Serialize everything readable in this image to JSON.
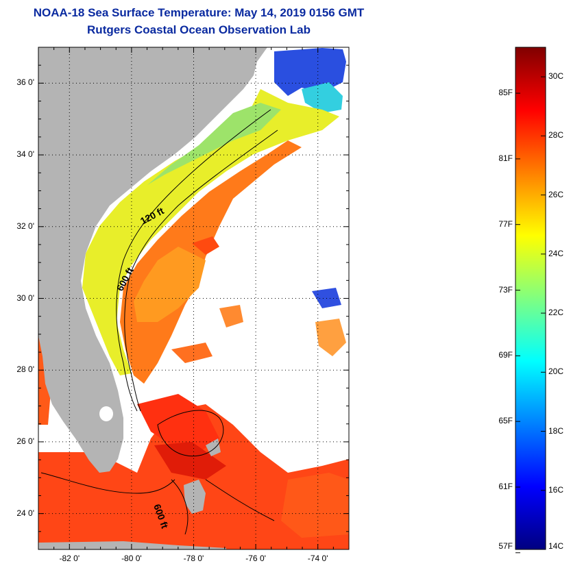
{
  "title": {
    "line1": "NOAA-18 Sea Surface Temperature:  May 14, 2019 0156 GMT",
    "line2": "Rutgers Coastal Ocean Observation Lab"
  },
  "map": {
    "lat_labels": [
      "36 0'",
      "34 0'",
      "32 0'",
      "30 0'",
      "28 0'",
      "26 0'",
      "24 0'"
    ],
    "lat_values": [
      36,
      34,
      32,
      30,
      28,
      26,
      24
    ],
    "lon_labels": [
      "-82 0'",
      "-80 0'",
      "-78 0'",
      "-76 0'",
      "-74 0'"
    ],
    "lon_values": [
      -82,
      -80,
      -78,
      -76,
      -74
    ],
    "lat_range": [
      23,
      37
    ],
    "lon_range": [
      -83,
      -73
    ],
    "contour_labels": [
      "120 ft",
      "600 ft",
      "600 ft"
    ],
    "colors": {
      "land": "#b4b4b4",
      "no_data": "#ffffff",
      "contour": "#000000",
      "grid": "#000000"
    }
  },
  "colorbar": {
    "celsius_labels": [
      "30C",
      "28C",
      "26C",
      "24C",
      "22C",
      "20C",
      "18C",
      "16C",
      "14C"
    ],
    "celsius_values": [
      30,
      28,
      26,
      24,
      22,
      20,
      18,
      16,
      14
    ],
    "fahrenheit_labels": [
      "85F",
      "81F",
      "77F",
      "73F",
      "69F",
      "65F",
      "61F",
      "57F"
    ],
    "fahrenheit_values": [
      85,
      81,
      77,
      73,
      69,
      65,
      61,
      57
    ],
    "range_c": [
      14,
      31
    ],
    "stops": [
      "#000080",
      "#0000ff",
      "#0080ff",
      "#00ffff",
      "#80ff80",
      "#ffff00",
      "#ff8000",
      "#ff0000",
      "#800000"
    ]
  }
}
